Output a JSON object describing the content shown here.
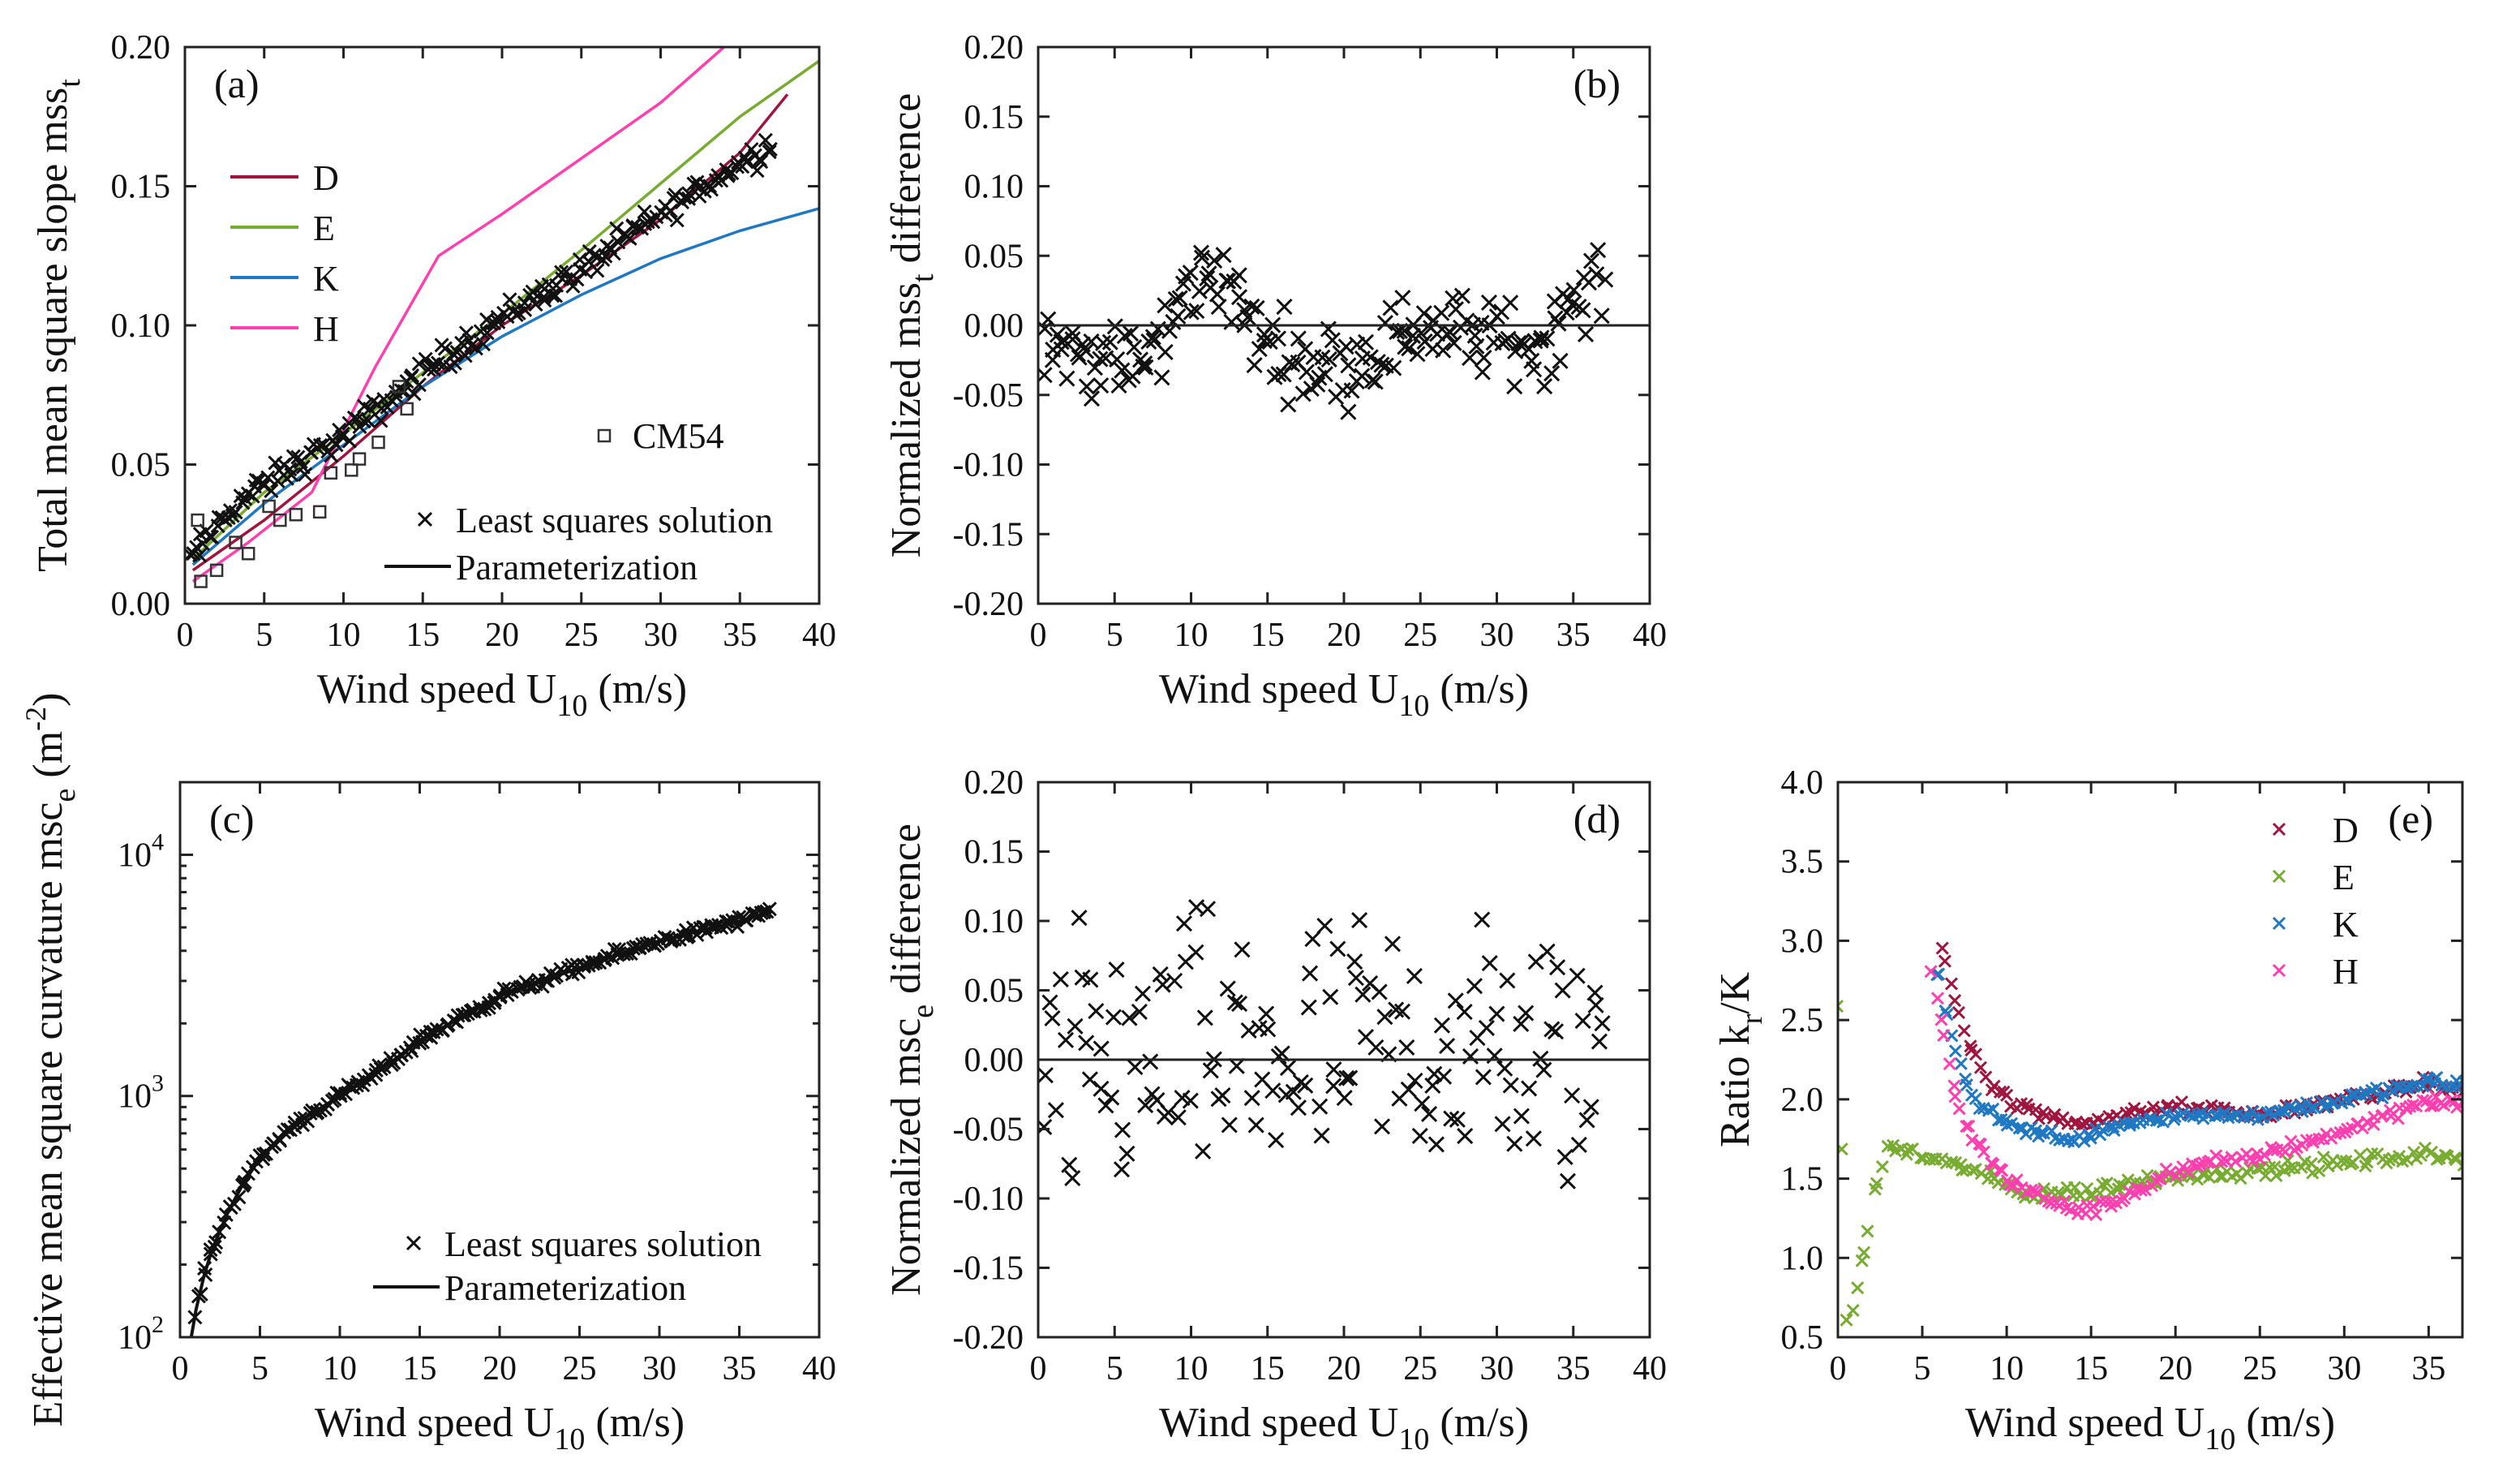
{
  "chart_data": [
    {
      "id": "a",
      "type": "scatter",
      "panel_label": "(a)",
      "ylabel": "Total mean square slope mss",
      "ylabel_sub": "t",
      "xlabel": "Wind speed U",
      "xlabel_sub": "10",
      "xlabel_suffix": " (m/s)",
      "xlim": [
        0,
        40
      ],
      "ylim": [
        0,
        0.2
      ],
      "xticks": [
        "0",
        "5",
        "10",
        "15",
        "20",
        "25",
        "30",
        "35",
        "40"
      ],
      "yticks": [
        "0.00",
        "0.05",
        "0.10",
        "0.15",
        "0.20"
      ],
      "lines": [
        {
          "name": "D",
          "color": "#a0153e",
          "x": [
            0.5,
            5,
            10,
            15,
            20,
            25,
            30,
            35,
            38
          ],
          "y": [
            0.012,
            0.03,
            0.053,
            0.078,
            0.1,
            0.118,
            0.138,
            0.162,
            0.183
          ]
        },
        {
          "name": "E",
          "color": "#77ac30",
          "x": [
            0.5,
            5,
            10,
            15,
            20,
            25,
            30,
            35,
            40
          ],
          "y": [
            0.016,
            0.04,
            0.061,
            0.083,
            0.104,
            0.127,
            0.151,
            0.175,
            0.195
          ]
        },
        {
          "name": "K",
          "color": "#1f78c1",
          "x": [
            0.5,
            5,
            10,
            15,
            20,
            25,
            30,
            35,
            40
          ],
          "y": [
            0.014,
            0.036,
            0.057,
            0.078,
            0.096,
            0.111,
            0.124,
            0.134,
            0.142
          ]
        },
        {
          "name": "H",
          "color": "#ff3fb0",
          "x": [
            0.5,
            4,
            8,
            12,
            16,
            20,
            25,
            30,
            34
          ],
          "y": [
            0.008,
            0.022,
            0.04,
            0.085,
            0.125,
            0.14,
            0.16,
            0.18,
            0.2
          ]
        }
      ],
      "squares_name": "CM54",
      "squares_x": [
        0.8,
        1.0,
        2.0,
        3.2,
        4.0,
        5.3,
        6.0,
        7.0,
        8.5,
        9.2,
        10.5,
        11.0,
        12.2,
        13.5,
        14.0
      ],
      "squares_y": [
        0.03,
        0.008,
        0.012,
        0.022,
        0.018,
        0.035,
        0.03,
        0.032,
        0.033,
        0.047,
        0.048,
        0.052,
        0.058,
        0.078,
        0.07
      ],
      "ls_name": "Least squares solution",
      "param_name": "Parameterization",
      "ls_model": {
        "x_start": 0.3,
        "x_end": 37,
        "n": 200,
        "amp": 0.0035,
        "knots_x": [
          0,
          3,
          7,
          10,
          15,
          20,
          25,
          30,
          35,
          37
        ],
        "knots_y": [
          0.013,
          0.035,
          0.05,
          0.06,
          0.083,
          0.103,
          0.12,
          0.14,
          0.158,
          0.165
        ]
      }
    },
    {
      "id": "b",
      "type": "scatter",
      "panel_label": "(b)",
      "ylabel": "Normalized mss",
      "ylabel_sub": "t",
      "ylabel_suffix": " difference",
      "xlabel": "Wind speed U",
      "xlabel_sub": "10",
      "xlabel_suffix": " (m/s)",
      "xlim": [
        0,
        40
      ],
      "ylim": [
        -0.2,
        0.2
      ],
      "xticks": [
        "0",
        "5",
        "10",
        "15",
        "20",
        "25",
        "30",
        "35",
        "40"
      ],
      "yticks": [
        "-0.20",
        "-0.15",
        "-0.10",
        "-0.05",
        "0.00",
        "0.05",
        "0.10",
        "0.15",
        "0.20"
      ],
      "zero_line": true,
      "ls_model": {
        "x_start": 0.3,
        "x_end": 37,
        "n": 200,
        "amp": 0.02,
        "knots_x": [
          0,
          2,
          4,
          6,
          8,
          10,
          12,
          14,
          17,
          20,
          25,
          30,
          33,
          35,
          37
        ],
        "knots_y": [
          0.0,
          -0.02,
          -0.025,
          -0.03,
          -0.015,
          0.03,
          0.04,
          -0.005,
          -0.025,
          -0.03,
          0.0,
          -0.01,
          -0.015,
          0.02,
          0.03
        ]
      }
    },
    {
      "id": "c",
      "type": "scatter",
      "panel_label": "(c)",
      "ylabel": "Effective mean square curvature msc",
      "ylabel_sub": "e",
      "ylabel_suffix": " (m",
      "ylabel_sup": "-2",
      "ylabel_end": ")",
      "xlabel": "Wind speed U",
      "xlabel_sub": "10",
      "xlabel_suffix": " (m/s)",
      "xlim": [
        0,
        40
      ],
      "ylim": [
        100,
        20000
      ],
      "yscale": "log",
      "xticks": [
        "0",
        "5",
        "10",
        "15",
        "20",
        "25",
        "30",
        "35",
        "40"
      ],
      "ytick_values": [
        100,
        1000,
        10000
      ],
      "ytick_bases": [
        "10",
        "10",
        "10"
      ],
      "ytick_exps": [
        "2",
        "3",
        "4"
      ],
      "ls_name": "Least squares solution",
      "param_name": "Parameterization",
      "param_x": [
        0.7,
        1,
        1.5,
        2,
        3,
        4,
        5,
        7,
        10,
        12,
        15,
        20,
        25,
        30,
        35,
        37
      ],
      "param_y": [
        100,
        130,
        180,
        230,
        330,
        440,
        550,
        750,
        1000,
        1200,
        1700,
        2600,
        3400,
        4400,
        5300,
        5800
      ],
      "ls_model": {
        "x_start": 0.9,
        "x_end": 37,
        "n": 200,
        "amp": 0.035,
        "log": true,
        "knots_x": [
          0.7,
          1,
          1.5,
          2,
          3,
          4,
          5,
          7,
          10,
          12,
          15,
          20,
          25,
          30,
          35,
          37
        ],
        "knots_y": [
          100,
          130,
          180,
          230,
          330,
          440,
          550,
          750,
          1000,
          1200,
          1700,
          2600,
          3400,
          4400,
          5300,
          5800
        ]
      }
    },
    {
      "id": "d",
      "type": "scatter",
      "panel_label": "(d)",
      "ylabel": "Normalized msc",
      "ylabel_sub": "e",
      "ylabel_suffix": " difference",
      "xlabel": "Wind speed U",
      "xlabel_sub": "10",
      "xlabel_suffix": " (m/s)",
      "xlim": [
        0,
        40
      ],
      "ylim": [
        -0.2,
        0.2
      ],
      "xticks": [
        "0",
        "5",
        "10",
        "15",
        "20",
        "25",
        "30",
        "35",
        "40"
      ],
      "yticks": [
        "-0.20",
        "-0.15",
        "-0.10",
        "-0.05",
        "0.00",
        "0.05",
        "0.10",
        "0.15",
        "0.20"
      ],
      "zero_line": true,
      "ls_model": {
        "x_start": 0.3,
        "x_end": 37,
        "n": 160,
        "amp": 0.07,
        "knots_x": [
          0,
          5,
          10,
          15,
          20,
          25,
          30,
          37
        ],
        "knots_y": [
          -0.02,
          0.0,
          0.0,
          0.0,
          0.0,
          0.01,
          0.0,
          0.0
        ]
      }
    },
    {
      "id": "e",
      "type": "scatter",
      "panel_label": "(e)",
      "ylabel": "Ratio k",
      "ylabel_sub": "r",
      "ylabel_suffix": "/K",
      "xlabel": "Wind speed U",
      "xlabel_sub": "10",
      "xlabel_suffix": " (m/s)",
      "xlim": [
        0,
        37
      ],
      "ylim": [
        0.5,
        4.0
      ],
      "xticks": [
        "0",
        "5",
        "10",
        "15",
        "20",
        "25",
        "30",
        "35"
      ],
      "yticks": [
        "0.5",
        "1.0",
        "1.5",
        "2.0",
        "2.5",
        "3.0",
        "3.5",
        "4.0"
      ],
      "series": [
        {
          "name": "D",
          "color": "#a0153e",
          "model": {
            "x_start": 6.2,
            "x_end": 37,
            "n": 120,
            "amp": 0.025,
            "knots_x": [
              6.2,
              7,
              8,
              9,
              10,
              12,
              14,
              17,
              20,
              25,
              30,
              35,
              37
            ],
            "knots_y": [
              2.95,
              2.6,
              2.3,
              2.1,
              2.0,
              1.9,
              1.85,
              1.9,
              1.95,
              1.9,
              2.0,
              2.1,
              2.05
            ]
          }
        },
        {
          "name": "E",
          "color": "#77ac30",
          "model": {
            "x_start": 0,
            "x_end": 37,
            "n": 140,
            "amp": 0.03,
            "knots_x": [
              0,
              0.5,
              1,
              2,
              3,
              5,
              8,
              11,
              15,
              20,
              25,
              30,
              35,
              37
            ],
            "knots_y": [
              2.6,
              0.6,
              0.7,
              1.35,
              1.7,
              1.65,
              1.55,
              1.4,
              1.42,
              1.52,
              1.55,
              1.6,
              1.65,
              1.6
            ]
          }
        },
        {
          "name": "K",
          "color": "#1f78c1",
          "model": {
            "x_start": 5.8,
            "x_end": 37,
            "n": 130,
            "amp": 0.025,
            "knots_x": [
              5.8,
              7,
              8,
              10,
              12,
              14,
              17,
              20,
              25,
              30,
              35,
              37
            ],
            "knots_y": [
              2.85,
              2.3,
              2.0,
              1.85,
              1.78,
              1.75,
              1.85,
              1.9,
              1.9,
              2.0,
              2.1,
              2.1
            ]
          }
        },
        {
          "name": "H",
          "color": "#ff3fb0",
          "model": {
            "x_start": 5.6,
            "x_end": 37,
            "n": 130,
            "amp": 0.03,
            "knots_x": [
              5.6,
              7,
              8,
              10,
              12,
              14,
              16,
              18,
              20,
              25,
              30,
              35,
              37
            ],
            "knots_y": [
              2.8,
              2.0,
              1.75,
              1.5,
              1.38,
              1.3,
              1.32,
              1.45,
              1.55,
              1.65,
              1.8,
              2.0,
              1.95
            ]
          }
        }
      ]
    }
  ]
}
